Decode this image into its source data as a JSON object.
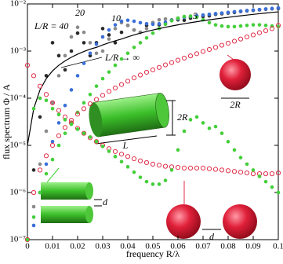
{
  "chart_data": {
    "type": "line",
    "xlabel": "frequency R/λ",
    "ylabel": "flux spectrum Φ / A",
    "xlim": [
      0,
      0.1
    ],
    "ylim": [
      1e-07,
      0.01
    ],
    "log_y": true,
    "xticks": [
      0,
      0.01,
      0.02,
      0.03,
      0.04,
      0.05,
      0.06,
      0.07,
      0.08,
      0.09,
      0.1
    ],
    "yticks": [
      {
        "value": 1e-07,
        "label": "10⁻⁷"
      },
      {
        "value": 1e-06,
        "label": "10⁻⁶"
      },
      {
        "value": 1e-05,
        "label": "10⁻⁵"
      },
      {
        "value": 0.0001,
        "label": "10⁻⁴"
      },
      {
        "value": 0.001,
        "label": "10⁻³"
      },
      {
        "value": 0.01,
        "label": "10⁻²"
      }
    ],
    "x": [
      0,
      0.0025,
      0.005,
      0.0075,
      0.01,
      0.0125,
      0.015,
      0.0175,
      0.02,
      0.0225,
      0.025,
      0.0275,
      0.03,
      0.0325,
      0.035,
      0.0375,
      0.04,
      0.0425,
      0.045,
      0.0475,
      0.05,
      0.0525,
      0.055,
      0.0575,
      0.06,
      0.0625,
      0.065,
      0.0675,
      0.07,
      0.0725,
      0.075,
      0.0775,
      0.08,
      0.0825,
      0.085,
      0.0875,
      0.09,
      0.0925,
      0.095,
      0.0975,
      0.1
    ],
    "series": [
      {
        "name": "L/R = 40",
        "color": "#2a2a2a",
        "marker": "dot",
        "values": [
          1e-07,
          3e-06,
          4e-05,
          0.0003,
          0.0015,
          0.0008,
          0.0004,
          0.001,
          0.0024,
          0.0015,
          0.0008,
          0.0015,
          0.003,
          0.0022,
          0.0015,
          0.0025,
          0.0035,
          0.0028,
          0.0025,
          0.0035,
          0.004,
          0.0036,
          0.0038,
          0.0045,
          0.0046,
          0.0045,
          0.005,
          0.0053,
          0.0054,
          0.0056,
          0.006,
          0.0062,
          0.0064,
          0.0066,
          0.0069,
          0.0071,
          0.0073,
          0.0075,
          0.0077,
          0.0079,
          0.008
        ]
      },
      {
        "name": "20",
        "color": "#8a8a8a",
        "marker": "dot",
        "values": [
          1e-07,
          5e-07,
          4e-06,
          2e-05,
          8e-05,
          0.0003,
          0.0008,
          0.002,
          0.0032,
          0.0025,
          0.0015,
          0.0009,
          0.001,
          0.0018,
          0.003,
          0.004,
          0.0035,
          0.0028,
          0.0025,
          0.003,
          0.004,
          0.0046,
          0.0048,
          0.0046,
          0.0048,
          0.0052,
          0.0055,
          0.0056,
          0.0058,
          0.006,
          0.0062,
          0.0064,
          0.0066,
          0.0068,
          0.007,
          0.0072,
          0.0074,
          0.0076,
          0.0078,
          0.008,
          0.0082
        ]
      },
      {
        "name": "10",
        "color": "#3a6fd8",
        "marker": "dot",
        "values": [
          1e-07,
          2e-07,
          1e-06,
          4e-06,
          1.2e-05,
          3e-05,
          7e-05,
          0.00015,
          0.0003,
          0.00055,
          0.0009,
          0.0014,
          0.002,
          0.0028,
          0.0036,
          0.0043,
          0.0045,
          0.0043,
          0.004,
          0.0038,
          0.0037,
          0.0038,
          0.0041,
          0.0045,
          0.0049,
          0.0052,
          0.0054,
          0.0056,
          0.0058,
          0.006,
          0.0062,
          0.0064,
          0.0066,
          0.0068,
          0.007,
          0.0072,
          0.0074,
          0.0076,
          0.0078,
          0.008,
          0.0082
        ]
      },
      {
        "name": "5",
        "color": "#44cf3a",
        "marker": "dot",
        "values": [
          1e-07,
          3e-07,
          1e-06,
          2.5e-06,
          5e-06,
          1e-05,
          1.8e-05,
          3e-05,
          5e-05,
          8e-05,
          0.00012,
          0.00018,
          0.00026,
          0.00036,
          0.0005,
          0.00068,
          0.0009,
          0.0012,
          0.0015,
          0.0019,
          0.0024,
          0.003,
          0.0037,
          0.0044,
          0.005,
          0.0054,
          0.0055,
          0.0052,
          0.0046,
          0.004,
          0.0036,
          0.0034,
          0.0033,
          0.0033,
          0.0034,
          0.0035,
          0.0036,
          0.0036,
          0.0035,
          0.0034,
          0.0033
        ]
      },
      {
        "name": "L/R → ∞",
        "color": "#000000",
        "marker": "none",
        "values": [
          1e-05,
          6e-05,
          0.00015,
          0.00026,
          0.00038,
          0.0005,
          0.00062,
          0.00074,
          0.00086,
          0.00098,
          0.0011,
          0.0012,
          0.00135,
          0.0015,
          0.00165,
          0.0018,
          0.002,
          0.0022,
          0.0024,
          0.0026,
          0.0028,
          0.003,
          0.0032,
          0.0034,
          0.0036,
          0.0038,
          0.004,
          0.0042,
          0.0044,
          0.0046,
          0.0048,
          0.005,
          0.0052,
          0.0054,
          0.0056,
          0.0058,
          0.006,
          0.0062,
          0.0064,
          0.0066,
          0.0068
        ]
      },
      {
        "color": "#e0304a",
        "marker": "open-circle",
        "values": [
          1e-07,
          1e-06,
          3e-06,
          6e-06,
          1e-05,
          1.6e-05,
          2.4e-05,
          3.4e-05,
          4.6e-05,
          6e-05,
          7.6e-05,
          9.4e-05,
          0.000115,
          0.00014,
          0.000165,
          0.000195,
          0.00023,
          0.00027,
          0.00031,
          0.000355,
          0.0004,
          0.00045,
          0.00051,
          0.00057,
          0.00064,
          0.00071,
          0.00079,
          0.00088,
          0.00098,
          0.00108,
          0.0012,
          0.00133,
          0.00147,
          0.00162,
          0.0018,
          0.002,
          0.0022,
          0.00245,
          0.0027,
          0.003,
          0.0035
        ]
      },
      {
        "color": "#e0304a",
        "marker": "open-circle",
        "values": [
          0.0005,
          0.0003,
          0.00018,
          0.00012,
          8e-05,
          5.5e-05,
          4e-05,
          3e-05,
          2.3e-05,
          1.8e-05,
          1.45e-05,
          1.2e-05,
          1e-05,
          8.5e-06,
          7.4e-06,
          6.5e-06,
          5.8e-06,
          5.2e-06,
          4.7e-06,
          4.3e-06,
          4e-06,
          3.8e-06,
          3.6e-06,
          3.5e-06,
          3.4e-06,
          3.3e-06,
          3.3e-06,
          3.3e-06,
          3.3e-06,
          3.2e-06,
          3.1e-06,
          3e-06,
          2.9e-06,
          2.8e-06,
          2.7e-06,
          2.6e-06,
          2.5e-06,
          2.5e-06,
          2.5e-06,
          2.5e-06,
          2.6e-06
        ]
      },
      {
        "color": "#44cf3a",
        "marker": "dot",
        "values": [
          1e-07,
          6e-05,
          0.0001,
          9e-05,
          6e-05,
          4.5e-05,
          3.5e-05,
          2.8e-05,
          2.2e-05,
          1.8e-05,
          1.5e-05,
          1.2e-05,
          9.5e-06,
          7.5e-06,
          5.8e-06,
          4.5e-06,
          3.5e-06,
          2.7e-06,
          2.1e-06,
          1.7e-06,
          1.5e-06,
          1.5e-06,
          1.8e-06,
          3e-06,
          8e-06,
          2e-05,
          3.5e-05,
          4e-05,
          3e-05,
          2.3e-05,
          2.5e-05,
          1.8e-05,
          1.2e-05,
          8e-06,
          5.5e-06,
          4e-06,
          3e-06,
          2.2e-06,
          1.7e-06,
          1.3e-06,
          1e-06
        ]
      }
    ],
    "annotations": [
      "2R",
      "L",
      "2R",
      "d",
      "d"
    ]
  }
}
